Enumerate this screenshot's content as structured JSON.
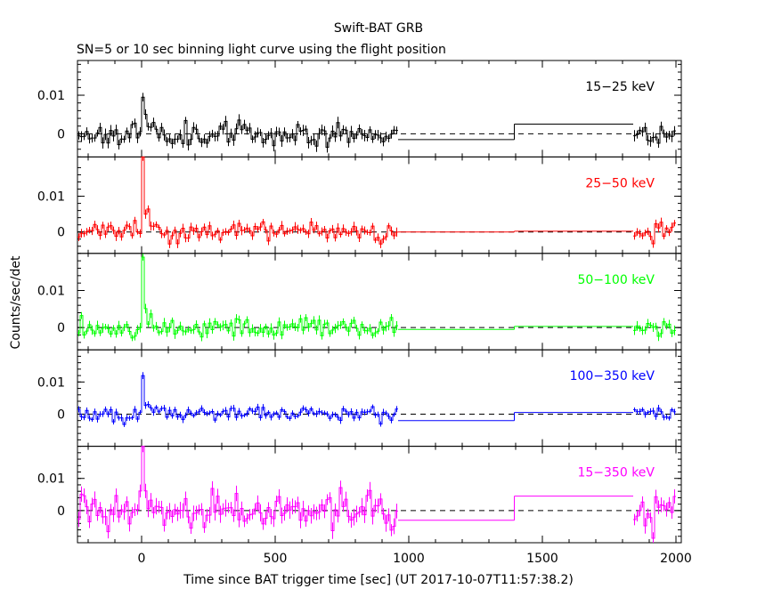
{
  "chart_data": {
    "type": "line",
    "title": "Swift-BAT GRB",
    "subtitle": "SN=5 or 10 sec binning light curve using the flight position",
    "xlabel": "Time since BAT trigger time [sec] (UT 2017-10-07T11:57:38.2)",
    "ylabel": "Counts/sec/det",
    "xlim": [
      -240,
      2020
    ],
    "x_ticks": [
      0,
      500,
      1000,
      1500,
      2000
    ],
    "panels": [
      {
        "name": "15-25 keV",
        "label": "15−25 keV",
        "color": "#000000",
        "ylim": [
          -0.006,
          0.019
        ],
        "y_ticks": [
          0,
          0.01
        ],
        "y_tick_labels": [
          "0",
          "0.01"
        ],
        "binned_segments": [
          {
            "start": 960,
            "end": 1395,
            "value": -0.0015
          },
          {
            "start": 1395,
            "end": 1840,
            "value": 0.0025
          }
        ],
        "spike": {
          "t": 0,
          "peak": 0.0095
        },
        "noise_amp": 0.0025,
        "seed": 11
      },
      {
        "name": "25-50 keV",
        "label": "25−50 keV",
        "color": "#ff0000",
        "ylim": [
          -0.006,
          0.021
        ],
        "y_ticks": [
          0,
          0.01
        ],
        "y_tick_labels": [
          "0",
          "0.01"
        ],
        "binned_segments": [
          {
            "start": 960,
            "end": 1395,
            "value": 0.0
          },
          {
            "start": 1395,
            "end": 1840,
            "value": 0.0002
          }
        ],
        "spike": {
          "t": 0,
          "peak": 0.021
        },
        "noise_amp": 0.0022,
        "seed": 23
      },
      {
        "name": "50-100 keV",
        "label": "50−100 keV",
        "color": "#00ff00",
        "ylim": [
          -0.006,
          0.02
        ],
        "y_ticks": [
          0,
          0.01
        ],
        "y_tick_labels": [
          "0",
          "0.01"
        ],
        "binned_segments": [
          {
            "start": 960,
            "end": 1395,
            "value": -0.0005
          },
          {
            "start": 1395,
            "end": 1840,
            "value": 0.0003
          }
        ],
        "spike": {
          "t": 0,
          "peak": 0.019
        },
        "noise_amp": 0.0022,
        "seed": 37
      },
      {
        "name": "100-350 keV",
        "label": "100−350 keV",
        "color": "#0000ff",
        "ylim": [
          -0.01,
          0.02
        ],
        "y_ticks": [
          0,
          0.01
        ],
        "y_tick_labels": [
          "0",
          "0.01"
        ],
        "binned_segments": [
          {
            "start": 960,
            "end": 1395,
            "value": -0.002
          },
          {
            "start": 1395,
            "end": 1840,
            "value": 0.0005
          }
        ],
        "spike": {
          "t": 0,
          "peak": 0.012
        },
        "noise_amp": 0.0018,
        "seed": 51
      },
      {
        "name": "15-350 keV",
        "label": "15−350 keV",
        "color": "#ff00ff",
        "ylim": [
          -0.01,
          0.02
        ],
        "y_ticks": [
          0,
          0.01
        ],
        "y_tick_labels": [
          "0",
          "0.01"
        ],
        "binned_segments": [
          {
            "start": 960,
            "end": 1395,
            "value": -0.003
          },
          {
            "start": 1395,
            "end": 1840,
            "value": 0.0045
          }
        ],
        "spike": {
          "t": 0,
          "peak": 0.02
        },
        "noise_amp": 0.0045,
        "seed": 67
      }
    ],
    "data_segments": [
      [
        -240,
        960
      ],
      [
        1840,
        2000
      ]
    ],
    "bin_width": 10
  }
}
